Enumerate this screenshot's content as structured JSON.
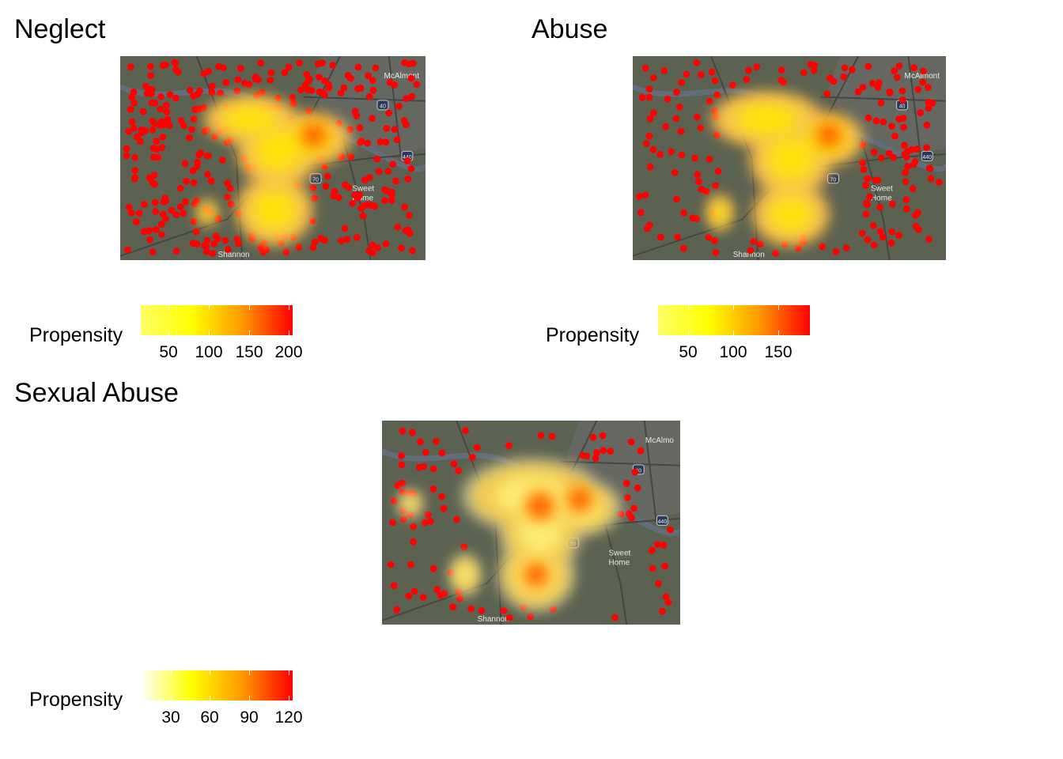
{
  "panels": [
    {
      "key": "neglect",
      "title": "Neglect",
      "legend": {
        "label": "Propensity",
        "ticks": [
          "50",
          "100",
          "150",
          "200"
        ],
        "colors": [
          "#ffff66",
          "#ffff00",
          "#ff9900",
          "#ff0000"
        ]
      }
    },
    {
      "key": "abuse",
      "title": "Abuse",
      "legend": {
        "label": "Propensity",
        "ticks": [
          "50",
          "100",
          "150"
        ],
        "colors": [
          "#ffff66",
          "#ffff00",
          "#ff9900",
          "#ff0000"
        ]
      }
    },
    {
      "key": "sexual",
      "title": "Sexual Abuse",
      "legend": {
        "label": "Propensity",
        "ticks": [
          "30",
          "60",
          "90",
          "120"
        ],
        "colors": [
          "#ffffff",
          "#ffff00",
          "#ff9900",
          "#ff0000"
        ]
      }
    }
  ],
  "map_labels": {
    "neglect": [
      "McAlmont",
      "Sweet Home",
      "Shannon",
      "40",
      "440",
      "70"
    ],
    "abuse": [
      "McAlmont",
      "Sweet Home",
      "Shannon",
      "40",
      "440",
      "70"
    ],
    "sexual": [
      "McAlmo",
      "Sweet Home",
      "Shannon",
      "40",
      "440",
      "70"
    ]
  },
  "colors": {
    "basemap": "#5c6251",
    "river": "#636d7a",
    "roads": "#454545",
    "points": "#ff0000"
  }
}
